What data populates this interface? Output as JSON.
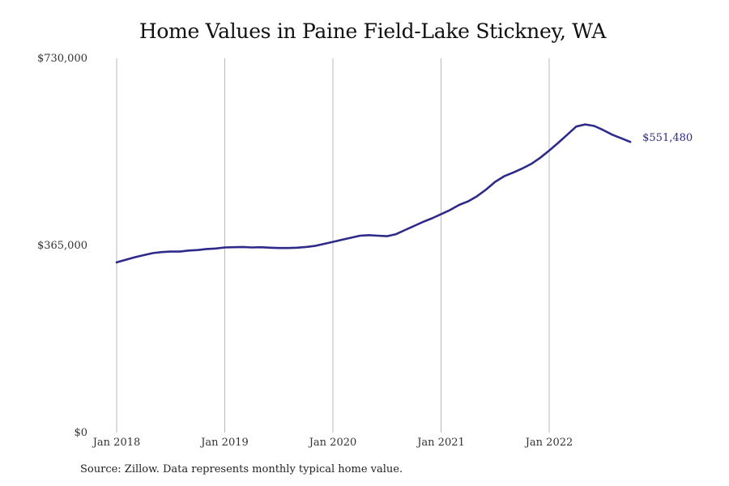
{
  "chart_data": {
    "type": "line",
    "title": "Home Values in Paine Field-Lake Stickney, WA",
    "xlabel": "",
    "ylabel": "",
    "x_ticks": [
      "Jan 2018",
      "Jan 2019",
      "Jan 2020",
      "Jan 2021",
      "Jan 2022"
    ],
    "y_ticks": [
      "$0",
      "$365,000",
      "$730,000"
    ],
    "ylim": [
      0,
      730000
    ],
    "xlim": [
      "2018-01",
      "2022-12"
    ],
    "grid": "vertical lines at x ticks",
    "colors": {
      "line": "#2e2a8a",
      "grid": "#b8b8b8"
    },
    "series": [
      {
        "x": [
          "2018-01",
          "2018-02",
          "2018-03",
          "2018-04",
          "2018-05",
          "2018-06",
          "2018-07",
          "2018-08",
          "2018-09",
          "2018-10",
          "2018-11",
          "2018-12",
          "2019-01",
          "2019-02",
          "2019-03",
          "2019-04",
          "2019-05",
          "2019-06",
          "2019-07",
          "2019-08",
          "2019-09",
          "2019-10",
          "2019-11",
          "2019-12",
          "2020-01",
          "2020-02",
          "2020-03",
          "2020-04",
          "2020-05",
          "2020-06",
          "2020-07",
          "2020-08",
          "2020-09",
          "2020-10",
          "2020-11",
          "2020-12",
          "2021-01",
          "2021-02",
          "2021-03",
          "2021-04",
          "2021-05",
          "2021-06",
          "2021-07",
          "2021-08",
          "2021-09",
          "2021-10",
          "2021-11",
          "2021-12",
          "2022-01",
          "2022-02",
          "2022-03",
          "2022-04",
          "2022-05",
          "2022-06",
          "2022-07",
          "2022-08",
          "2022-09",
          "2022-10"
        ],
        "values": [
          332000,
          337000,
          342000,
          346000,
          350000,
          352000,
          353000,
          353000,
          355000,
          356000,
          358000,
          359000,
          361000,
          361500,
          362000,
          361000,
          361500,
          360500,
          360000,
          360000,
          360500,
          362000,
          364000,
          368000,
          372000,
          376000,
          380000,
          384000,
          385000,
          384000,
          383000,
          387000,
          395000,
          403000,
          411000,
          418000,
          426000,
          434000,
          444000,
          451000,
          461000,
          474000,
          489000,
          500000,
          507000,
          515000,
          524000,
          536000,
          550000,
          565000,
          581000,
          597000,
          601000,
          598000,
          590000,
          581000,
          574000,
          567000
        ],
        "end_label": "$551,480"
      }
    ]
  },
  "footer": {
    "source": "Source: Zillow. Data represents monthly typical home value."
  }
}
